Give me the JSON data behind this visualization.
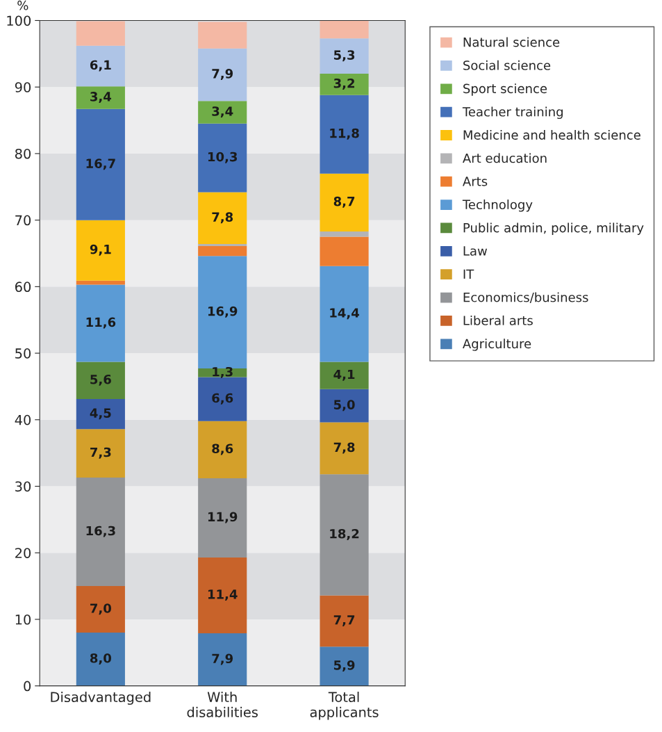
{
  "chart_data": {
    "type": "bar",
    "stacked": true,
    "ylabel": "%",
    "categories": [
      "Disadvantaged",
      "With\ndisabilities",
      "Total\napplicants"
    ],
    "ylim": [
      0,
      100
    ],
    "yticks": [
      0,
      10,
      20,
      30,
      40,
      50,
      60,
      70,
      80,
      90,
      100
    ],
    "legend": "top right",
    "bands": [
      {
        "axis": "y",
        "from": 0,
        "to": 10,
        "color": "#ededee"
      },
      {
        "axis": "y",
        "from": 10,
        "to": 20,
        "color": "#dcdde0"
      },
      {
        "axis": "y",
        "from": 20,
        "to": 30,
        "color": "#ededee"
      },
      {
        "axis": "y",
        "from": 30,
        "to": 40,
        "color": "#dcdde0"
      },
      {
        "axis": "y",
        "from": 40,
        "to": 50,
        "color": "#ededee"
      },
      {
        "axis": "y",
        "from": 50,
        "to": 60,
        "color": "#dcdde0"
      },
      {
        "axis": "y",
        "from": 60,
        "to": 70,
        "color": "#ededee"
      },
      {
        "axis": "y",
        "from": 70,
        "to": 80,
        "color": "#dcdde0"
      },
      {
        "axis": "y",
        "from": 80,
        "to": 90,
        "color": "#ededee"
      },
      {
        "axis": "y",
        "from": 90,
        "to": 100,
        "color": "#dcdde0"
      }
    ],
    "series": [
      {
        "name": "Agriculture",
        "color": "#4a7fb5",
        "values": [
          8.0,
          7.9,
          5.9
        ],
        "value_labels": [
          "8,0",
          "7,9",
          "5,9"
        ]
      },
      {
        "name": "Liberal arts",
        "color": "#c8632a",
        "values": [
          7.0,
          11.4,
          7.7
        ],
        "value_labels": [
          "7,0",
          "11,4",
          "7,7"
        ]
      },
      {
        "name": "Economics/business",
        "color": "#939598",
        "values": [
          16.3,
          11.9,
          18.2
        ],
        "value_labels": [
          "16,3",
          "11,9",
          "18,2"
        ]
      },
      {
        "name": "IT",
        "color": "#d4a02a",
        "values": [
          7.3,
          8.6,
          7.8
        ],
        "value_labels": [
          "7,3",
          "8,6",
          "7,8"
        ]
      },
      {
        "name": "Law",
        "color": "#3a5ea8",
        "values": [
          4.5,
          6.6,
          5.0
        ],
        "value_labels": [
          "4,5",
          "6,6",
          "5,0"
        ]
      },
      {
        "name": "Public admin, police, military",
        "color": "#5a8a3c",
        "values": [
          5.6,
          1.3,
          4.1
        ],
        "value_labels": [
          "5,6",
          "1,3",
          "4,1"
        ]
      },
      {
        "name": "Technology",
        "color": "#5b9bd5",
        "values": [
          11.6,
          16.9,
          14.4
        ],
        "value_labels": [
          "11,6",
          "16,9",
          "14,4"
        ]
      },
      {
        "name": "Arts",
        "color": "#ed7d31",
        "values": [
          0.6,
          1.5,
          4.4
        ],
        "value_labels": [
          null,
          null,
          null
        ]
      },
      {
        "name": "Art education",
        "color": "#b4b4b6",
        "values": [
          null,
          0.3,
          0.8
        ],
        "value_labels": [
          null,
          null,
          null
        ]
      },
      {
        "name": "Medicine and health science",
        "color": "#fcc10e",
        "values": [
          9.1,
          7.8,
          8.7
        ],
        "value_labels": [
          "9,1",
          "7,8",
          "8,7"
        ]
      },
      {
        "name": "Teacher training",
        "color": "#4470b8",
        "values": [
          16.7,
          10.3,
          11.8
        ],
        "value_labels": [
          "16,7",
          "10,3",
          "11,8"
        ]
      },
      {
        "name": "Sport science",
        "color": "#70ad47",
        "values": [
          3.4,
          3.4,
          3.2
        ],
        "value_labels": [
          "3,4",
          "3,4",
          "3,2"
        ]
      },
      {
        "name": "Social science",
        "color": "#aec4e6",
        "values": [
          6.1,
          7.9,
          5.3
        ],
        "value_labels": [
          "6,1",
          "7,9",
          "5,3"
        ]
      },
      {
        "name": "Natural science",
        "color": "#f4b8a4",
        "values": [
          3.7,
          4.0,
          2.7
        ],
        "value_labels": [
          null,
          null,
          null
        ]
      }
    ]
  }
}
